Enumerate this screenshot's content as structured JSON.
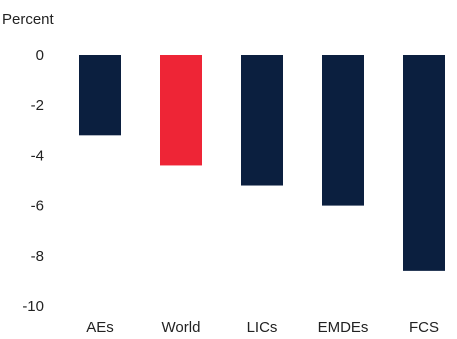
{
  "chart_data": {
    "type": "bar",
    "unit_label": "Percent",
    "categories": [
      "AEs",
      "World",
      "LICs",
      "EMDEs",
      "FCS"
    ],
    "values": [
      -3.2,
      -4.4,
      -5.2,
      -6.0,
      -8.6
    ],
    "bar_colors": [
      "#0b1f3f",
      "#ee2536",
      "#0b1f3f",
      "#0b1f3f",
      "#0b1f3f"
    ],
    "ylim": [
      -10,
      0
    ],
    "yticks": [
      0,
      -2,
      -4,
      -6,
      -8,
      -10
    ],
    "ytick_labels": [
      "0",
      "-2",
      "-4",
      "-6",
      "-8",
      "-10"
    ],
    "grid": false,
    "legend": "none"
  }
}
